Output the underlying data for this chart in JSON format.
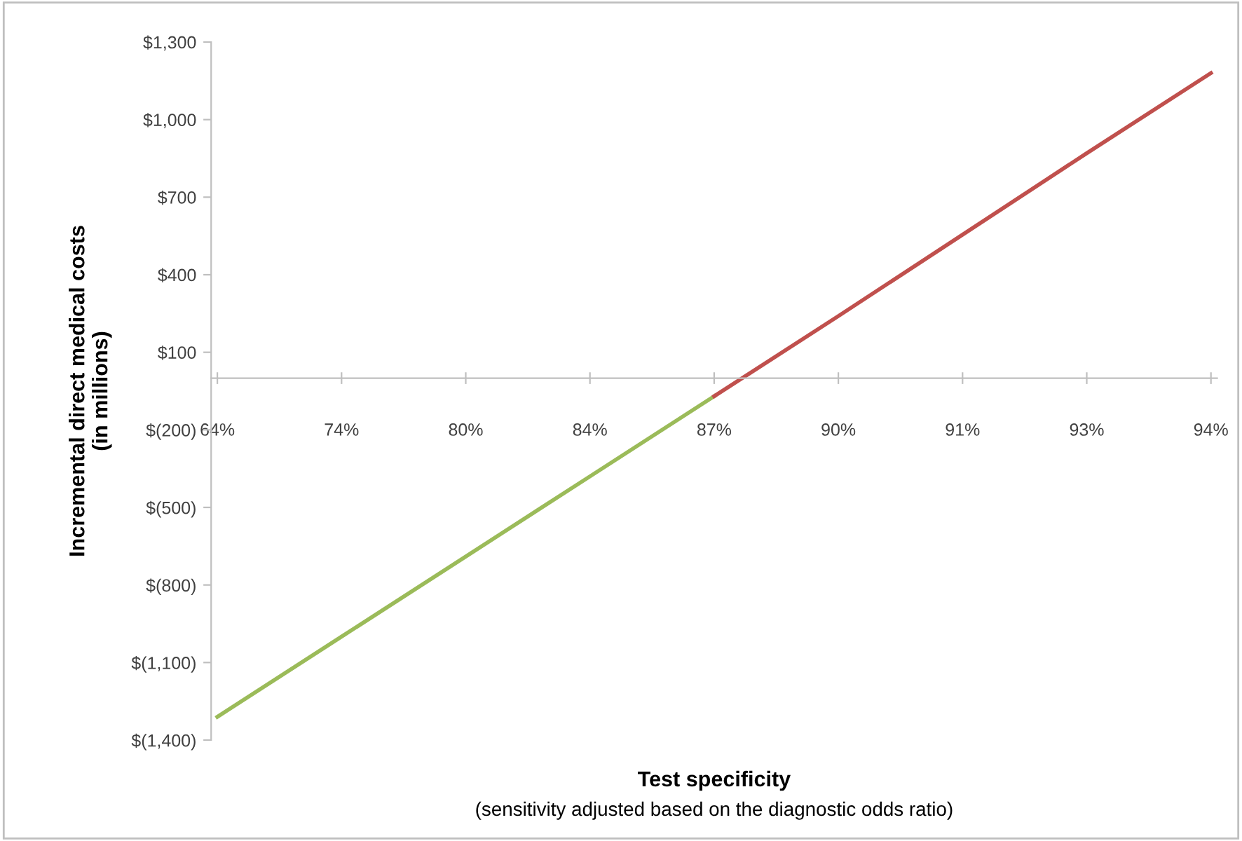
{
  "chart_data": {
    "type": "line",
    "xlabel": "Test specificity",
    "ylabel": "Incremental direct medical costs\n(in millions)",
    "annotations": [
      "(sensitivity adjusted based on the diagnostic odds ratio)"
    ],
    "categories": [
      "64%",
      "74%",
      "80%",
      "84%",
      "87%",
      "90%",
      "91%",
      "93%",
      "94%"
    ],
    "series": [
      {
        "color": "#9bbb59",
        "values": [
          -1310,
          -1000,
          -690,
          -380,
          -70,
          null,
          null,
          null,
          null
        ]
      },
      {
        "color": "#c0504d",
        "values": [
          null,
          null,
          null,
          null,
          -70,
          240,
          555,
          870,
          1180
        ]
      }
    ],
    "ylim": [
      -1400,
      1300
    ],
    "yticks": [
      {
        "value": -1400,
        "label": "$(1,400)"
      },
      {
        "value": -1100,
        "label": "$(1,100)"
      },
      {
        "value": -800,
        "label": "$(800)"
      },
      {
        "value": -500,
        "label": "$(500)"
      },
      {
        "value": -200,
        "label": "$(200)"
      },
      {
        "value": 100,
        "label": "$100"
      },
      {
        "value": 400,
        "label": "$400"
      },
      {
        "value": 700,
        "label": "$700"
      },
      {
        "value": 1000,
        "label": "$1,000"
      },
      {
        "value": 1300,
        "label": "$1,300"
      }
    ],
    "grid": false,
    "marker": "none",
    "line_style": "solid"
  }
}
